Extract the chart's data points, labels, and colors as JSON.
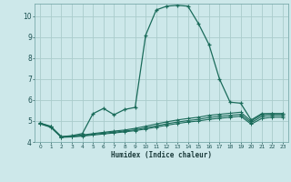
{
  "bg_color": "#cde8ea",
  "grid_color": "#aacccc",
  "line_color": "#1a6b5a",
  "xlabel": "Humidex (Indice chaleur)",
  "xlim": [
    -0.5,
    23.5
  ],
  "ylim": [
    4,
    10.6
  ],
  "yticks": [
    4,
    5,
    6,
    7,
    8,
    9,
    10
  ],
  "xticks": [
    0,
    1,
    2,
    3,
    4,
    5,
    6,
    7,
    8,
    9,
    10,
    11,
    12,
    13,
    14,
    15,
    16,
    17,
    18,
    19,
    20,
    21,
    22,
    23
  ],
  "series1_x": [
    0,
    1,
    2,
    3,
    4,
    5,
    6,
    7,
    8,
    9,
    10,
    11,
    12,
    13,
    14,
    15,
    16,
    17,
    18,
    19,
    20,
    21,
    22,
    23
  ],
  "series1_y": [
    4.9,
    4.75,
    4.25,
    4.3,
    4.4,
    5.35,
    5.6,
    5.3,
    5.55,
    5.65,
    9.1,
    10.3,
    10.48,
    10.52,
    10.48,
    9.65,
    8.65,
    7.0,
    5.9,
    5.85,
    5.05,
    5.35,
    5.35,
    5.35
  ],
  "series2_x": [
    0,
    1,
    2,
    3,
    4,
    5,
    6,
    7,
    8,
    9,
    10,
    11,
    12,
    13,
    14,
    15,
    16,
    17,
    18,
    19,
    20,
    21,
    22,
    23
  ],
  "series2_y": [
    4.9,
    4.72,
    4.25,
    4.28,
    4.33,
    4.4,
    4.46,
    4.52,
    4.57,
    4.65,
    4.75,
    4.86,
    4.96,
    5.05,
    5.12,
    5.18,
    5.27,
    5.32,
    5.37,
    5.42,
    5.0,
    5.3,
    5.35,
    5.35
  ],
  "series3_x": [
    0,
    1,
    2,
    3,
    4,
    5,
    6,
    7,
    8,
    9,
    10,
    11,
    12,
    13,
    14,
    15,
    16,
    17,
    18,
    19,
    20,
    21,
    22,
    23
  ],
  "series3_y": [
    4.88,
    4.72,
    4.23,
    4.26,
    4.3,
    4.37,
    4.42,
    4.47,
    4.52,
    4.58,
    4.67,
    4.77,
    4.87,
    4.95,
    5.02,
    5.08,
    5.17,
    5.22,
    5.27,
    5.32,
    4.92,
    5.22,
    5.27,
    5.27
  ],
  "series4_x": [
    0,
    1,
    2,
    3,
    4,
    5,
    6,
    7,
    8,
    9,
    10,
    11,
    12,
    13,
    14,
    15,
    16,
    17,
    18,
    19,
    20,
    21,
    22,
    23
  ],
  "series4_y": [
    4.86,
    4.7,
    4.22,
    4.24,
    4.28,
    4.33,
    4.38,
    4.43,
    4.48,
    4.54,
    4.62,
    4.71,
    4.8,
    4.88,
    4.95,
    5.0,
    5.08,
    5.13,
    5.18,
    5.23,
    4.85,
    5.12,
    5.18,
    5.18
  ]
}
